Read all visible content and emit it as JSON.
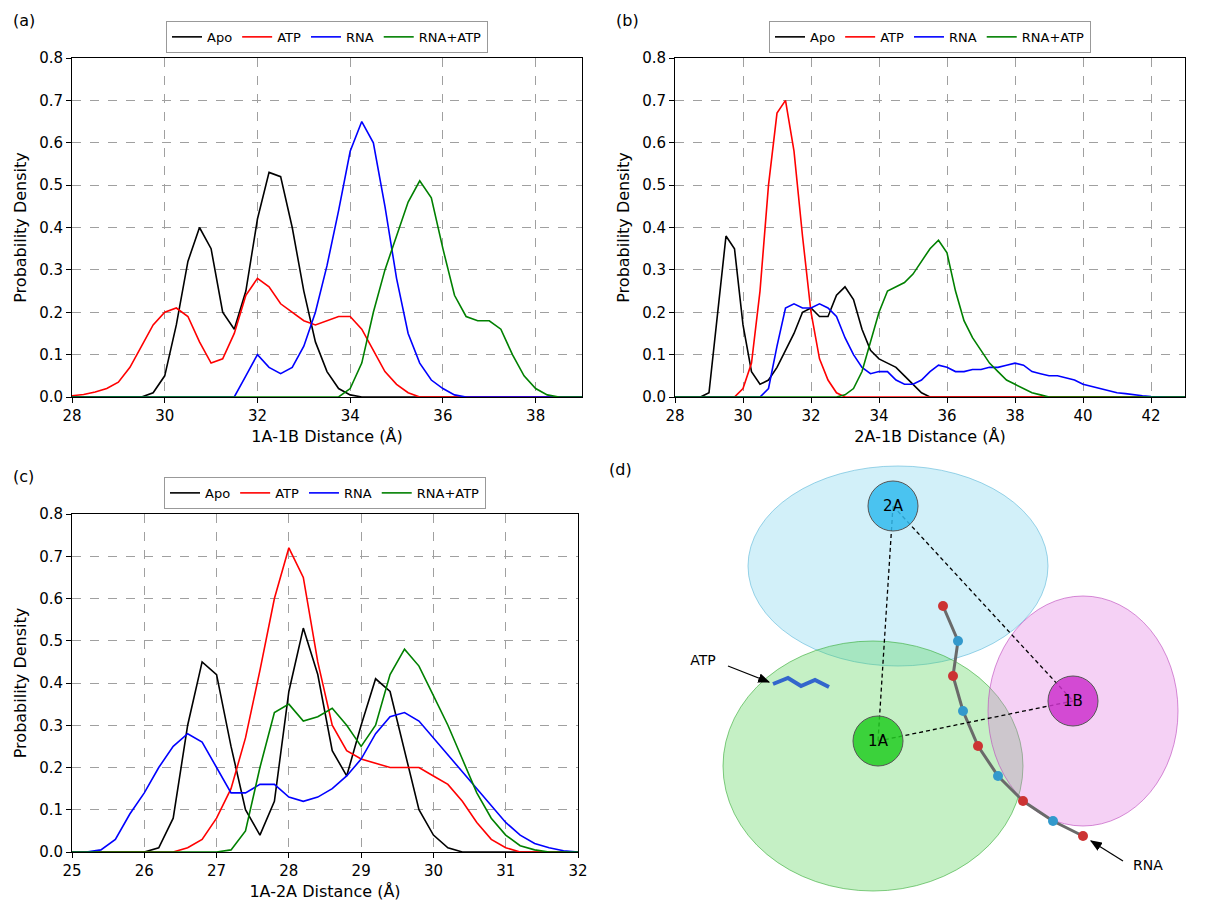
{
  "chart_data": [
    {
      "type": "line",
      "panel_label": "(a)",
      "x_label": "1A-1B Distance (Å)",
      "y_label": "Probability Density",
      "x": [
        28,
        28.25,
        28.5,
        28.75,
        29,
        29.25,
        29.5,
        29.75,
        30,
        30.25,
        30.5,
        30.75,
        31,
        31.25,
        31.5,
        31.75,
        32,
        32.25,
        32.5,
        32.75,
        33,
        33.25,
        33.5,
        33.75,
        34,
        34.25,
        34.5,
        34.75,
        35,
        35.25,
        35.5,
        35.75,
        36,
        36.25,
        36.5,
        36.75,
        37,
        37.25,
        37.5,
        37.75,
        38,
        38.25,
        38.5,
        38.75,
        39
      ],
      "series": [
        {
          "name": "Apo",
          "color": "#000000",
          "values": [
            0,
            0,
            0,
            0,
            0,
            0,
            0,
            0.01,
            0.05,
            0.17,
            0.32,
            0.4,
            0.35,
            0.2,
            0.16,
            0.25,
            0.42,
            0.53,
            0.52,
            0.4,
            0.25,
            0.13,
            0.06,
            0.02,
            0.005,
            0,
            0,
            0,
            0,
            0,
            0,
            0,
            0,
            0,
            0,
            0,
            0,
            0,
            0,
            0,
            0,
            0,
            0,
            0,
            0
          ]
        },
        {
          "name": "ATP",
          "color": "#ff0000",
          "values": [
            0.003,
            0.006,
            0.012,
            0.02,
            0.035,
            0.07,
            0.12,
            0.17,
            0.2,
            0.21,
            0.19,
            0.13,
            0.08,
            0.09,
            0.15,
            0.24,
            0.28,
            0.26,
            0.22,
            0.2,
            0.18,
            0.17,
            0.18,
            0.19,
            0.19,
            0.16,
            0.11,
            0.06,
            0.03,
            0.01,
            0,
            0,
            0,
            0,
            0,
            0,
            0,
            0,
            0,
            0,
            0,
            0,
            0,
            0,
            0
          ]
        },
        {
          "name": "RNA",
          "color": "#0000ff",
          "values": [
            0,
            0,
            0,
            0,
            0,
            0,
            0,
            0,
            0,
            0,
            0,
            0,
            0,
            0,
            0,
            0.05,
            0.1,
            0.07,
            0.055,
            0.07,
            0.12,
            0.2,
            0.31,
            0.44,
            0.58,
            0.65,
            0.6,
            0.45,
            0.28,
            0.15,
            0.08,
            0.04,
            0.02,
            0.005,
            0,
            0,
            0,
            0,
            0,
            0,
            0,
            0,
            0,
            0,
            0
          ]
        },
        {
          "name": "RNA+ATP",
          "color": "#008000",
          "values": [
            0,
            0,
            0,
            0,
            0,
            0,
            0,
            0,
            0,
            0,
            0,
            0,
            0,
            0,
            0,
            0,
            0,
            0,
            0,
            0,
            0,
            0,
            0,
            0,
            0.02,
            0.08,
            0.2,
            0.3,
            0.38,
            0.46,
            0.51,
            0.47,
            0.35,
            0.24,
            0.19,
            0.18,
            0.18,
            0.16,
            0.1,
            0.05,
            0.02,
            0.005,
            0,
            0,
            0
          ]
        }
      ],
      "xlim": [
        28,
        39
      ],
      "xticks": [
        28,
        30,
        32,
        34,
        36,
        38
      ],
      "ylim": [
        0,
        0.8
      ],
      "yticks": [
        {
          "value": 0,
          "label": "0.0"
        },
        0.1,
        0.2,
        0.3,
        0.4,
        0.5,
        0.6,
        0.7,
        0.8
      ],
      "grid": true,
      "legend": "top"
    },
    {
      "type": "line",
      "panel_label": "(b)",
      "x_label": "2A-1B Distance (Å)",
      "y_label": "Probability Density",
      "x": [
        28,
        28.25,
        28.5,
        28.75,
        29,
        29.25,
        29.5,
        29.75,
        30,
        30.25,
        30.5,
        30.75,
        31,
        31.25,
        31.5,
        31.75,
        32,
        32.25,
        32.5,
        32.75,
        33,
        33.25,
        33.5,
        33.75,
        34,
        34.25,
        34.5,
        34.75,
        35,
        35.25,
        35.5,
        35.75,
        36,
        36.25,
        36.5,
        36.75,
        37,
        37.25,
        37.5,
        37.75,
        38,
        38.25,
        38.5,
        38.75,
        39,
        39.25,
        39.5,
        39.75,
        40,
        40.25,
        40.5,
        40.75,
        41,
        41.25,
        41.5,
        41.75,
        42,
        42.25,
        42.5,
        42.75,
        43
      ],
      "series": [
        {
          "name": "Apo",
          "color": "#000000",
          "values": [
            0,
            0,
            0,
            0,
            0.01,
            0.2,
            0.38,
            0.35,
            0.17,
            0.06,
            0.03,
            0.04,
            0.07,
            0.11,
            0.15,
            0.2,
            0.21,
            0.19,
            0.19,
            0.24,
            0.26,
            0.23,
            0.16,
            0.11,
            0.09,
            0.08,
            0.07,
            0.05,
            0.03,
            0.01,
            0,
            0,
            0,
            0,
            0,
            0,
            0,
            0,
            0,
            0,
            0,
            0,
            0,
            0,
            0,
            0,
            0,
            0,
            0,
            0,
            0,
            0,
            0,
            0,
            0,
            0,
            0,
            0,
            0,
            0,
            0
          ]
        },
        {
          "name": "ATP",
          "color": "#ff0000",
          "values": [
            0,
            0,
            0,
            0,
            0,
            0,
            0,
            0,
            0.02,
            0.08,
            0.25,
            0.5,
            0.67,
            0.7,
            0.58,
            0.38,
            0.2,
            0.09,
            0.04,
            0.01,
            0,
            0,
            0,
            0,
            0,
            0,
            0,
            0,
            0,
            0,
            0,
            0,
            0,
            0,
            0,
            0,
            0,
            0,
            0,
            0,
            0,
            0,
            0,
            0,
            0,
            0,
            0,
            0,
            0,
            0,
            0,
            0,
            0,
            0,
            0,
            0,
            0,
            0,
            0,
            0,
            0
          ]
        },
        {
          "name": "RNA",
          "color": "#0000ff",
          "values": [
            0,
            0,
            0,
            0,
            0,
            0,
            0,
            0,
            0,
            0,
            0,
            0.02,
            0.12,
            0.21,
            0.22,
            0.21,
            0.21,
            0.22,
            0.21,
            0.19,
            0.14,
            0.1,
            0.07,
            0.055,
            0.06,
            0.06,
            0.04,
            0.03,
            0.03,
            0.04,
            0.06,
            0.075,
            0.07,
            0.06,
            0.06,
            0.065,
            0.065,
            0.07,
            0.07,
            0.075,
            0.08,
            0.075,
            0.06,
            0.055,
            0.05,
            0.05,
            0.045,
            0.04,
            0.03,
            0.025,
            0.02,
            0.015,
            0.01,
            0.008,
            0.005,
            0.003,
            0.001,
            0,
            0,
            0,
            0
          ]
        },
        {
          "name": "RNA+ATP",
          "color": "#008000",
          "values": [
            0,
            0,
            0,
            0,
            0,
            0,
            0,
            0,
            0,
            0,
            0,
            0,
            0,
            0,
            0,
            0,
            0,
            0,
            0,
            0,
            0.005,
            0.02,
            0.06,
            0.13,
            0.2,
            0.25,
            0.26,
            0.27,
            0.29,
            0.32,
            0.35,
            0.37,
            0.34,
            0.25,
            0.18,
            0.14,
            0.11,
            0.08,
            0.06,
            0.04,
            0.03,
            0.02,
            0.01,
            0.005,
            0,
            0,
            0,
            0,
            0,
            0,
            0,
            0,
            0,
            0,
            0,
            0,
            0,
            0,
            0,
            0,
            0
          ]
        }
      ],
      "xlim": [
        28,
        43
      ],
      "xticks": [
        28,
        30,
        32,
        34,
        36,
        38,
        40,
        42
      ],
      "ylim": [
        0,
        0.8
      ],
      "yticks": [
        {
          "value": 0,
          "label": "0.0"
        },
        0.1,
        0.2,
        0.3,
        0.4,
        0.5,
        0.6,
        0.7,
        0.8
      ],
      "grid": true,
      "legend": "top"
    },
    {
      "type": "line",
      "panel_label": "(c)",
      "x_label": "1A-2A Distance (Å)",
      "y_label": "Probability Density",
      "x": [
        25,
        25.2,
        25.4,
        25.6,
        25.8,
        26,
        26.2,
        26.4,
        26.6,
        26.8,
        27,
        27.2,
        27.4,
        27.6,
        27.8,
        28,
        28.2,
        28.4,
        28.6,
        28.8,
        29,
        29.2,
        29.4,
        29.6,
        29.8,
        30,
        30.2,
        30.4,
        30.6,
        30.8,
        31,
        31.2,
        31.4,
        31.6,
        31.8,
        32
      ],
      "series": [
        {
          "name": "Apo",
          "color": "#000000",
          "values": [
            0,
            0,
            0,
            0,
            0,
            0,
            0.01,
            0.08,
            0.3,
            0.45,
            0.42,
            0.25,
            0.1,
            0.04,
            0.12,
            0.38,
            0.53,
            0.42,
            0.24,
            0.18,
            0.3,
            0.41,
            0.38,
            0.24,
            0.1,
            0.04,
            0.01,
            0,
            0,
            0,
            0,
            0,
            0,
            0,
            0,
            0
          ]
        },
        {
          "name": "ATP",
          "color": "#ff0000",
          "values": [
            0,
            0,
            0,
            0,
            0,
            0,
            0,
            0,
            0.01,
            0.03,
            0.08,
            0.15,
            0.27,
            0.43,
            0.6,
            0.72,
            0.65,
            0.45,
            0.3,
            0.24,
            0.22,
            0.21,
            0.2,
            0.2,
            0.2,
            0.18,
            0.16,
            0.12,
            0.07,
            0.03,
            0.01,
            0,
            0,
            0,
            0,
            0
          ]
        },
        {
          "name": "RNA",
          "color": "#0000ff",
          "values": [
            0,
            0,
            0.005,
            0.03,
            0.09,
            0.14,
            0.2,
            0.25,
            0.28,
            0.26,
            0.2,
            0.14,
            0.14,
            0.16,
            0.16,
            0.13,
            0.12,
            0.13,
            0.15,
            0.18,
            0.22,
            0.28,
            0.32,
            0.33,
            0.31,
            0.27,
            0.23,
            0.19,
            0.15,
            0.11,
            0.07,
            0.04,
            0.02,
            0.01,
            0.003,
            0
          ]
        },
        {
          "name": "RNA+ATP",
          "color": "#008000",
          "values": [
            0,
            0,
            0,
            0,
            0,
            0,
            0,
            0,
            0,
            0,
            0,
            0.005,
            0.05,
            0.2,
            0.33,
            0.35,
            0.31,
            0.32,
            0.34,
            0.3,
            0.25,
            0.3,
            0.42,
            0.48,
            0.44,
            0.37,
            0.3,
            0.22,
            0.14,
            0.08,
            0.04,
            0.015,
            0.005,
            0,
            0,
            0
          ]
        }
      ],
      "xlim": [
        25,
        32
      ],
      "xticks": [
        25,
        26,
        27,
        28,
        29,
        30,
        31,
        32
      ],
      "ylim": [
        0,
        0.8
      ],
      "yticks": [
        {
          "value": 0,
          "label": "0.0"
        },
        0.1,
        0.2,
        0.3,
        0.4,
        0.5,
        0.6,
        0.7,
        0.8
      ],
      "grid": true,
      "legend": "top"
    }
  ],
  "diagram": {
    "panel_label": "(d)",
    "nodes": [
      {
        "label": "2A",
        "color": "#33bbee"
      },
      {
        "label": "1A",
        "color": "#22cc22"
      },
      {
        "label": "1B",
        "color": "#cc33cc"
      }
    ],
    "edges": [
      [
        "2A",
        "1A"
      ],
      [
        "2A",
        "1B"
      ],
      [
        "1A",
        "1B"
      ]
    ],
    "pointers": [
      {
        "label": "ATP"
      },
      {
        "label": "RNA"
      }
    ]
  }
}
